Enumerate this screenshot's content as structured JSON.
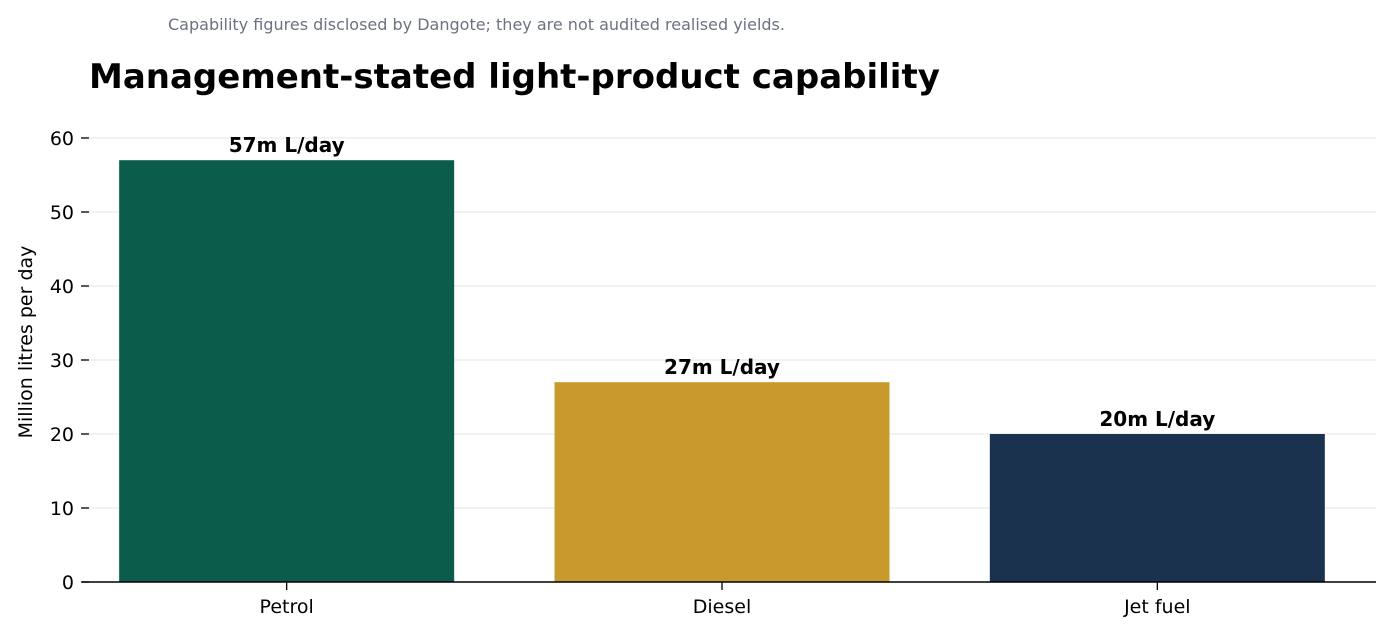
{
  "chart_data": {
    "type": "bar",
    "subtitle": "Capability figures disclosed by Dangote; they are not audited realised yields.",
    "title": "Management-stated light-product capability",
    "xlabel": "",
    "ylabel": "Million litres per day",
    "categories": [
      "Petrol",
      "Diesel",
      "Jet fuel"
    ],
    "values": [
      57,
      27,
      20
    ],
    "data_labels": [
      "57m L/day",
      "27m L/day",
      "20m L/day"
    ],
    "colors": [
      "#0b5c4b",
      "#c89a2e",
      "#1a324d"
    ],
    "ylim": [
      0,
      60
    ],
    "yticks": [
      0,
      10,
      20,
      30,
      40,
      50,
      60
    ],
    "grid": "horizontal",
    "legend": "none"
  }
}
